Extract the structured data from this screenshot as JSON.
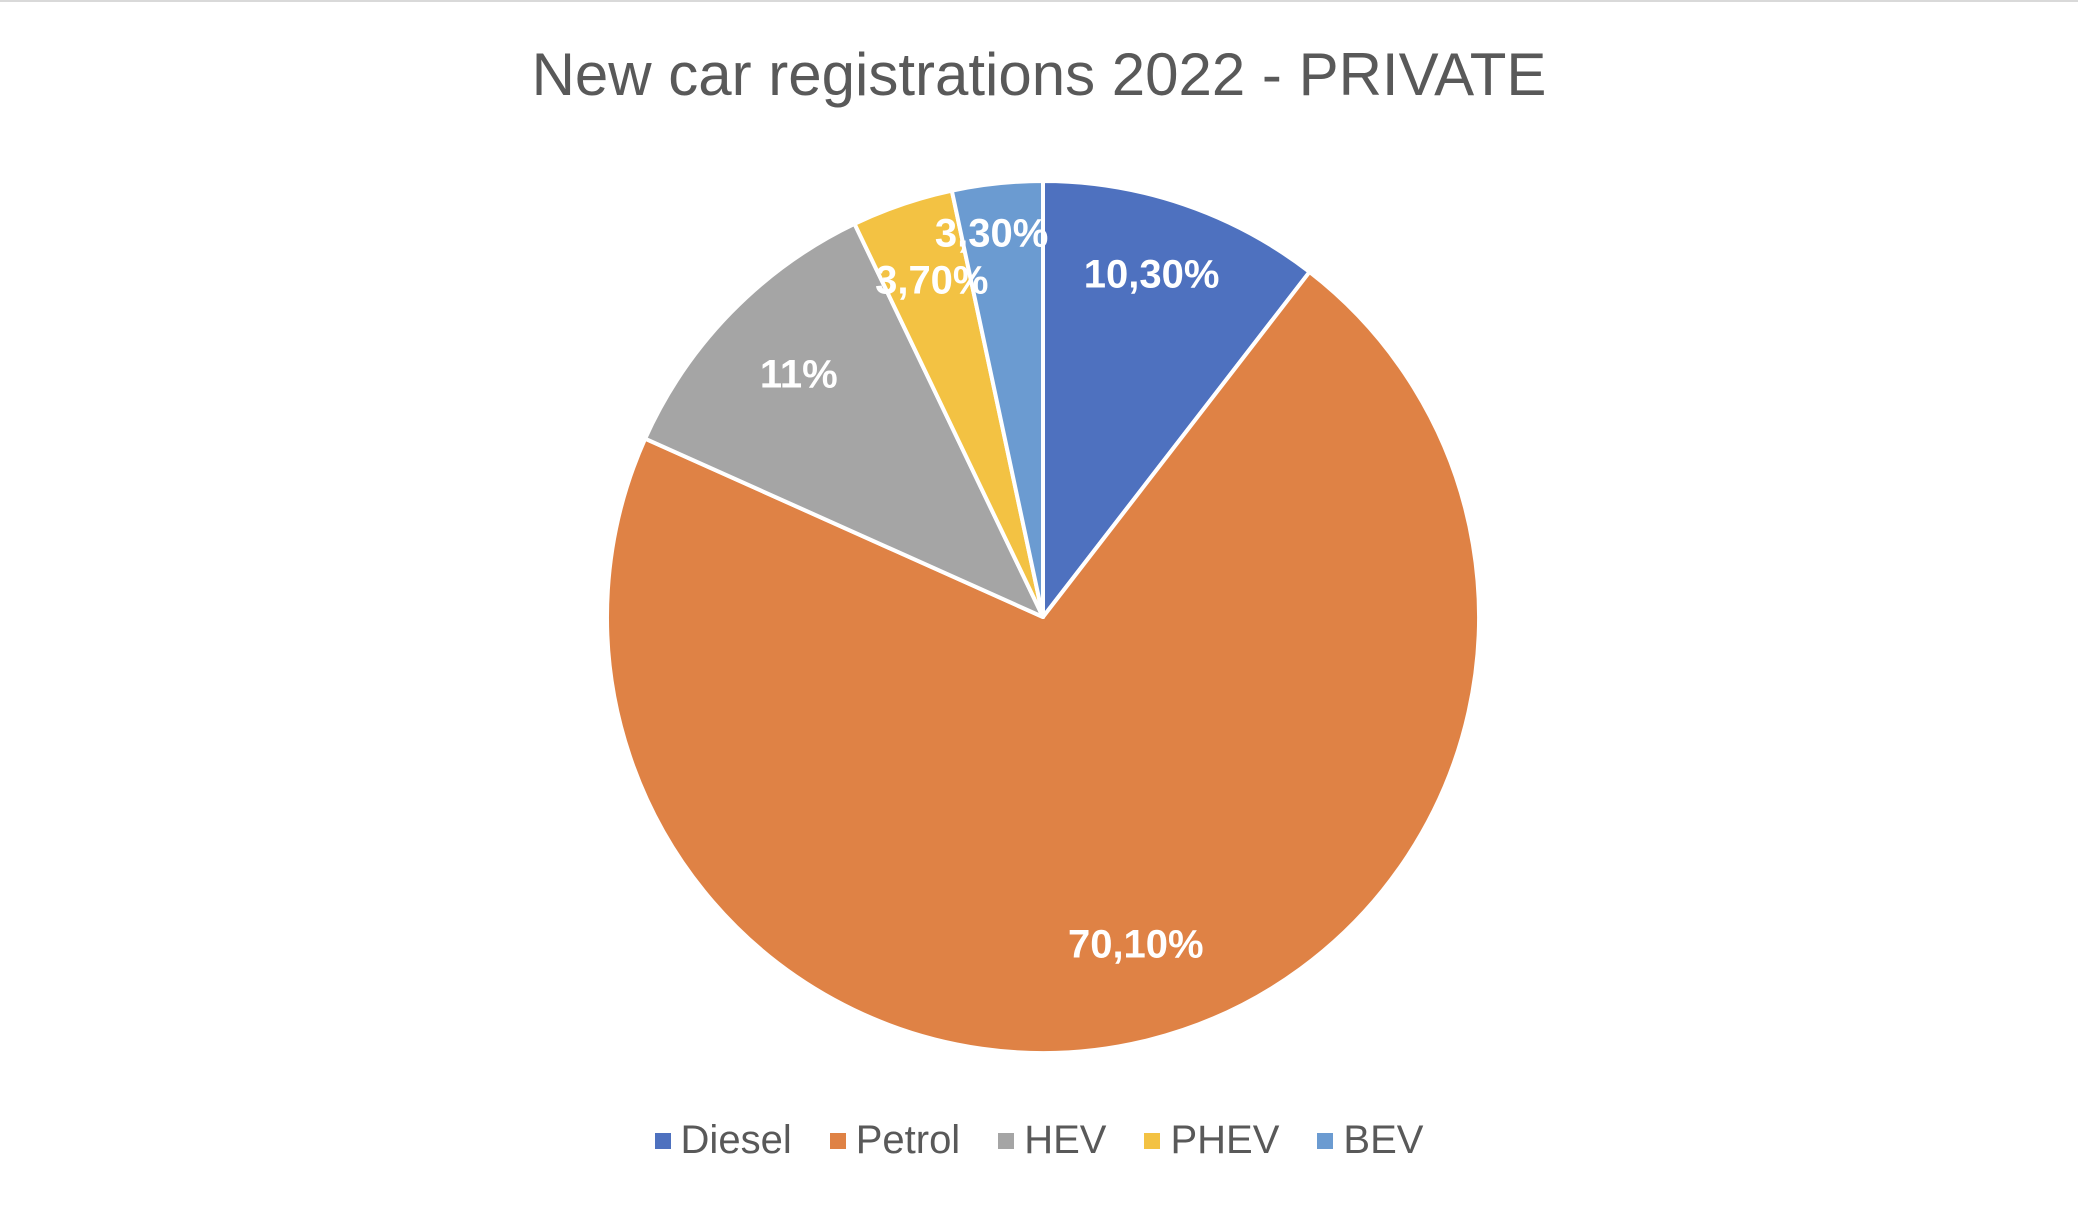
{
  "chart_data": {
    "type": "pie",
    "title": "New car registrations 2022 - PRIVATE",
    "categories": [
      "Diesel",
      "Petrol",
      "HEV",
      "PHEV",
      "BEV"
    ],
    "values": [
      10.3,
      70.1,
      11,
      3.7,
      3.3
    ],
    "data_labels": [
      "10,30%",
      "70,10%",
      "11%",
      "3,70%",
      "3,30%"
    ],
    "colors": [
      "#4e71bf",
      "#df8245",
      "#a5a5a5",
      "#f3c243",
      "#6b9bd1"
    ],
    "legend_position": "bottom"
  }
}
